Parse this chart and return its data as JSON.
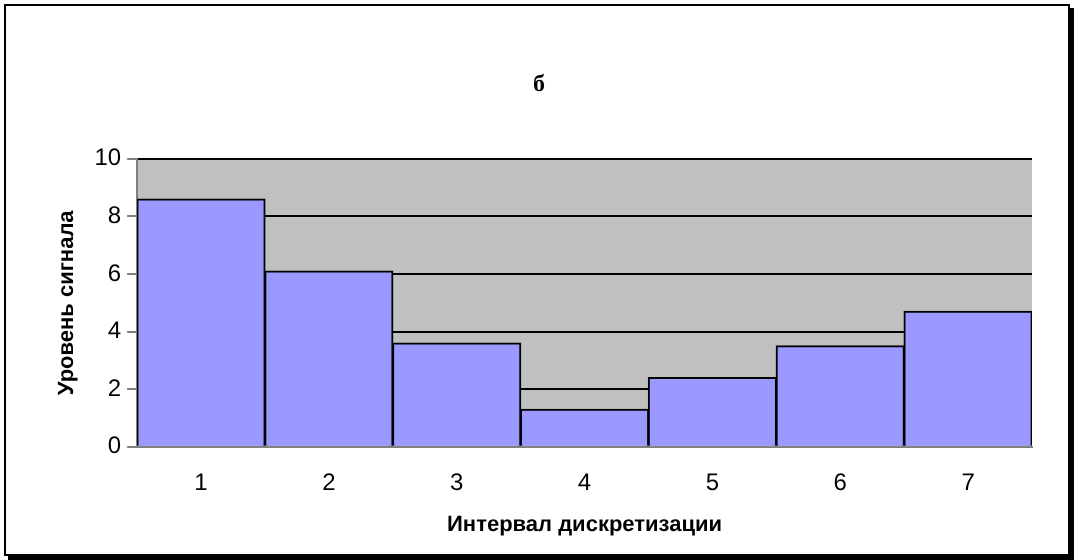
{
  "chart_data": {
    "type": "bar",
    "title": "б",
    "xlabel": "Интервал дискретизации",
    "ylabel": "Уровень сигнала",
    "categories": [
      "1",
      "2",
      "3",
      "4",
      "5",
      "6",
      "7"
    ],
    "values": [
      8.6,
      6.1,
      3.6,
      1.3,
      2.4,
      3.5,
      4.7
    ],
    "color": "#9999ff",
    "ylim": [
      0,
      10
    ],
    "yticks": [
      0,
      2,
      4,
      6,
      8,
      10
    ],
    "grid": "y"
  }
}
